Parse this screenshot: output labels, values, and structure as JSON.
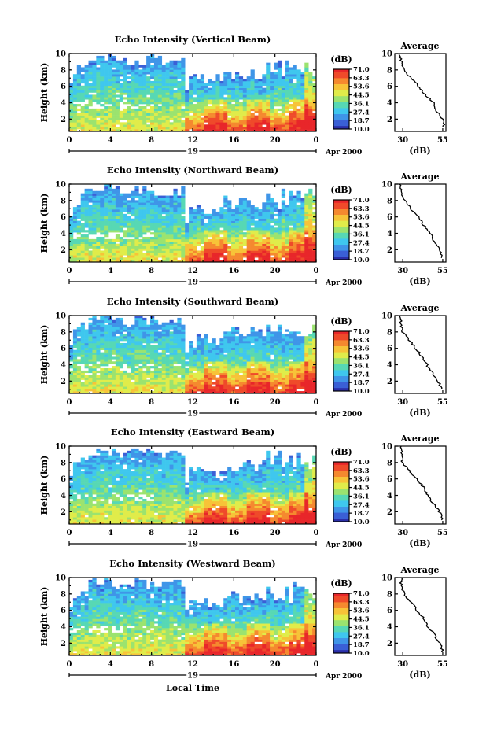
{
  "chart_data": {
    "type": "heatmap",
    "shared": {
      "xlabel": "Local Time",
      "x_ticks": [
        "0",
        "4",
        "8",
        "12",
        "16",
        "20",
        "0"
      ],
      "xlim": [
        0,
        24
      ],
      "date_label": "19",
      "month_year": "Apr 2000",
      "ylabel": "Height (km)",
      "y_ticks": [
        "2",
        "4",
        "6",
        "8",
        "10"
      ],
      "ylim": [
        0.5,
        10
      ],
      "colorbar_label": "(dB)",
      "colorbar_ticks": [
        "71.0",
        "63.3",
        "53.6",
        "44.5",
        "36.1",
        "27.4",
        "18.7",
        "10.0"
      ],
      "colorbar_range": [
        10,
        71
      ],
      "colors": [
        "#2b2ea8",
        "#3a5fd6",
        "#3f95e8",
        "#3fc7ee",
        "#57d8b4",
        "#9be36f",
        "#e0ec4a",
        "#f7c338",
        "#f5892f",
        "#ef4a2a",
        "#e8262a"
      ],
      "avg_title": "Average",
      "avg_xlabel": "(dB)",
      "avg_x_ticks": [
        "30",
        "55"
      ],
      "avg_xlim": [
        25,
        57
      ],
      "avg_y_ticks": [
        "2",
        "4",
        "6",
        "8",
        "10"
      ]
    },
    "panels": [
      {
        "title": "Echo Intensity (Vertical Beam)",
        "avg_profile": [
          [
            1,
            56
          ],
          [
            2,
            55
          ],
          [
            3,
            51
          ],
          [
            4,
            49
          ],
          [
            5,
            44
          ],
          [
            6,
            40
          ],
          [
            7,
            35
          ],
          [
            8,
            31
          ],
          [
            9,
            29
          ],
          [
            10,
            28
          ]
        ]
      },
      {
        "title": "Echo Intensity (Northward Beam)",
        "avg_profile": [
          [
            1,
            55
          ],
          [
            2,
            53
          ],
          [
            3,
            50
          ],
          [
            4,
            47
          ],
          [
            5,
            43
          ],
          [
            6,
            40
          ],
          [
            7,
            35
          ],
          [
            8,
            31
          ],
          [
            9,
            29
          ],
          [
            10,
            28
          ]
        ]
      },
      {
        "title": "Echo Intensity (Southward Beam)",
        "avg_profile": [
          [
            1,
            55
          ],
          [
            2,
            52
          ],
          [
            3,
            49
          ],
          [
            4,
            45
          ],
          [
            5,
            42
          ],
          [
            6,
            38
          ],
          [
            7,
            34
          ],
          [
            8,
            30
          ],
          [
            9,
            29
          ],
          [
            10,
            28
          ]
        ]
      },
      {
        "title": "Echo Intensity (Eastward Beam)",
        "avg_profile": [
          [
            1,
            55
          ],
          [
            2,
            53
          ],
          [
            3,
            49
          ],
          [
            4,
            46
          ],
          [
            5,
            43
          ],
          [
            6,
            39
          ],
          [
            7,
            34
          ],
          [
            8,
            30
          ],
          [
            9,
            29
          ],
          [
            10,
            29
          ]
        ]
      },
      {
        "title": "Echo Intensity (Westward Beam)",
        "avg_profile": [
          [
            1,
            55
          ],
          [
            2,
            53
          ],
          [
            3,
            50
          ],
          [
            4,
            46
          ],
          [
            5,
            43
          ],
          [
            6,
            39
          ],
          [
            7,
            35
          ],
          [
            8,
            31
          ],
          [
            9,
            29
          ],
          [
            10,
            29
          ]
        ]
      }
    ]
  }
}
